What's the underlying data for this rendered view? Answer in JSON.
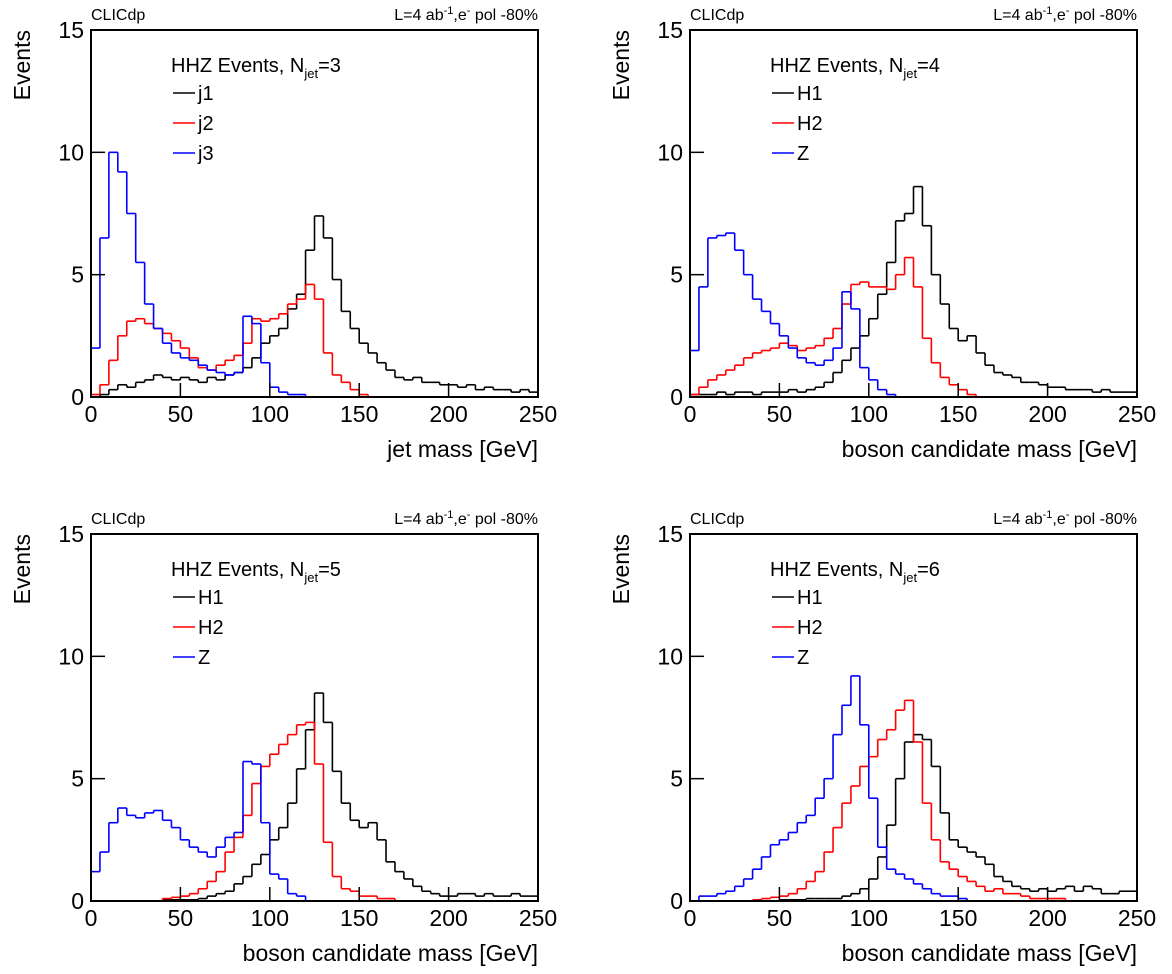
{
  "chart_data": [
    {
      "type": "histogram",
      "experiment": "CLICdp",
      "lumi_label": [
        "L=4 ab",
        "-1",
        ",e",
        "-",
        " pol -80%"
      ],
      "legend_title": [
        "HHZ Events, N",
        "jet",
        "=3"
      ],
      "xlabel": "jet mass [GeV]",
      "ylabel": "Events",
      "bins": [
        0,
        5,
        10,
        15,
        20,
        25,
        30,
        35,
        40,
        45,
        50,
        55,
        60,
        65,
        70,
        75,
        80,
        85,
        90,
        95,
        100,
        105,
        110,
        115,
        120,
        125,
        130,
        135,
        140,
        145,
        150,
        155,
        160,
        165,
        170,
        175,
        180,
        185,
        190,
        195,
        200,
        205,
        210,
        215,
        220,
        225,
        230,
        235,
        240,
        245,
        250
      ],
      "xlim": [
        0,
        250
      ],
      "ylim": [
        0,
        15
      ],
      "xticks": [
        0,
        50,
        100,
        150,
        200,
        250
      ],
      "yticks": [
        0,
        5,
        10,
        15
      ],
      "series": [
        {
          "name": "j1",
          "color": "#000000",
          "values": [
            0,
            0.1,
            0.3,
            0.5,
            0.4,
            0.6,
            0.7,
            0.9,
            0.8,
            0.7,
            0.8,
            0.7,
            0.6,
            0.8,
            0.7,
            0.9,
            1.0,
            1.2,
            1.6,
            2.2,
            2.5,
            2.8,
            3.6,
            4.2,
            6.0,
            7.4,
            6.5,
            4.8,
            3.5,
            2.8,
            2.2,
            1.8,
            1.4,
            1.1,
            0.8,
            0.7,
            0.8,
            0.6,
            0.6,
            0.5,
            0.5,
            0.4,
            0.5,
            0.3,
            0.4,
            0.3,
            0.3,
            0.2,
            0.3,
            0.2
          ]
        },
        {
          "name": "j2",
          "color": "#ff0000",
          "values": [
            0.1,
            0.5,
            1.5,
            2.5,
            3.1,
            3.2,
            3.0,
            2.8,
            2.6,
            2.3,
            2.0,
            1.6,
            1.2,
            1.1,
            1.3,
            1.5,
            1.7,
            2.2,
            3.2,
            3.1,
            3.2,
            3.4,
            3.8,
            4.0,
            4.6,
            4.0,
            1.8,
            0.9,
            0.6,
            0.3,
            0.1,
            0,
            0,
            0,
            0,
            0,
            0,
            0,
            0,
            0,
            0,
            0,
            0,
            0,
            0,
            0,
            0,
            0,
            0,
            0
          ]
        },
        {
          "name": "j3",
          "color": "#0000ff",
          "values": [
            2.0,
            6.5,
            10.0,
            9.2,
            7.5,
            5.5,
            3.8,
            2.8,
            2.2,
            1.8,
            1.6,
            1.5,
            1.3,
            1.1,
            1.0,
            0.9,
            1.0,
            3.3,
            3.0,
            1.4,
            0.4,
            0.2,
            0.1,
            0.1,
            0,
            0,
            0,
            0,
            0,
            0,
            0,
            0,
            0,
            0,
            0,
            0,
            0,
            0,
            0,
            0,
            0,
            0,
            0,
            0,
            0,
            0,
            0,
            0,
            0,
            0
          ]
        }
      ]
    },
    {
      "type": "histogram",
      "experiment": "CLICdp",
      "lumi_label": [
        "L=4 ab",
        "-1",
        ",e",
        "-",
        " pol -80%"
      ],
      "legend_title": [
        "HHZ Events, N",
        "jet",
        "=4"
      ],
      "xlabel": "boson candidate mass [GeV]",
      "ylabel": "Events",
      "bins": [
        0,
        5,
        10,
        15,
        20,
        25,
        30,
        35,
        40,
        45,
        50,
        55,
        60,
        65,
        70,
        75,
        80,
        85,
        90,
        95,
        100,
        105,
        110,
        115,
        120,
        125,
        130,
        135,
        140,
        145,
        150,
        155,
        160,
        165,
        170,
        175,
        180,
        185,
        190,
        195,
        200,
        205,
        210,
        215,
        220,
        225,
        230,
        235,
        240,
        245,
        250
      ],
      "xlim": [
        0,
        250
      ],
      "ylim": [
        0,
        15
      ],
      "xticks": [
        0,
        50,
        100,
        150,
        200,
        250
      ],
      "yticks": [
        0,
        5,
        10,
        15
      ],
      "series": [
        {
          "name": "H1",
          "color": "#000000",
          "values": [
            0.1,
            0.1,
            0.1,
            0.2,
            0.1,
            0.2,
            0.2,
            0.1,
            0.2,
            0.2,
            0.2,
            0.3,
            0.2,
            0.3,
            0.4,
            0.6,
            1.0,
            1.5,
            2.0,
            2.5,
            3.2,
            4.2,
            5.5,
            7.2,
            7.5,
            8.6,
            7.0,
            5.0,
            3.8,
            2.8,
            2.3,
            2.5,
            1.8,
            1.3,
            1.0,
            0.9,
            0.8,
            0.6,
            0.6,
            0.5,
            0.4,
            0.4,
            0.3,
            0.3,
            0.3,
            0.2,
            0.3,
            0.2,
            0.2,
            0.2
          ]
        },
        {
          "name": "H2",
          "color": "#ff0000",
          "values": [
            0.1,
            0.4,
            0.7,
            0.9,
            1.1,
            1.3,
            1.6,
            1.8,
            1.9,
            2.0,
            2.2,
            2.1,
            1.9,
            2.0,
            2.1,
            2.4,
            2.8,
            3.8,
            4.6,
            4.7,
            4.5,
            4.5,
            4.4,
            5.0,
            5.7,
            4.5,
            2.4,
            1.4,
            0.8,
            0.5,
            0.3,
            0.1,
            0,
            0,
            0,
            0,
            0,
            0,
            0,
            0,
            0,
            0,
            0,
            0,
            0,
            0,
            0,
            0,
            0,
            0
          ]
        },
        {
          "name": "Z",
          "color": "#0000ff",
          "values": [
            1.9,
            4.5,
            6.5,
            6.6,
            6.7,
            6.0,
            5.0,
            4.0,
            3.5,
            3.0,
            2.5,
            2.0,
            1.6,
            1.4,
            1.3,
            1.5,
            2.0,
            4.3,
            3.6,
            1.2,
            0.7,
            0.3,
            0.1,
            0,
            0,
            0,
            0,
            0,
            0,
            0,
            0,
            0,
            0,
            0,
            0,
            0,
            0,
            0,
            0,
            0,
            0,
            0,
            0,
            0,
            0,
            0,
            0,
            0,
            0,
            0
          ]
        }
      ]
    },
    {
      "type": "histogram",
      "experiment": "CLICdp",
      "lumi_label": [
        "L=4 ab",
        "-1",
        ",e",
        "-",
        " pol -80%"
      ],
      "legend_title": [
        "HHZ Events, N",
        "jet",
        "=5"
      ],
      "xlabel": "boson candidate mass [GeV]",
      "ylabel": "Events",
      "bins": [
        0,
        5,
        10,
        15,
        20,
        25,
        30,
        35,
        40,
        45,
        50,
        55,
        60,
        65,
        70,
        75,
        80,
        85,
        90,
        95,
        100,
        105,
        110,
        115,
        120,
        125,
        130,
        135,
        140,
        145,
        150,
        155,
        160,
        165,
        170,
        175,
        180,
        185,
        190,
        195,
        200,
        205,
        210,
        215,
        220,
        225,
        230,
        235,
        240,
        245,
        250
      ],
      "xlim": [
        0,
        250
      ],
      "ylim": [
        0,
        15
      ],
      "xticks": [
        0,
        50,
        100,
        150,
        200,
        250
      ],
      "yticks": [
        0,
        5,
        10,
        15
      ],
      "series": [
        {
          "name": "H1",
          "color": "#000000",
          "values": [
            0,
            0,
            0,
            0,
            0,
            0,
            0,
            0,
            0.05,
            0.05,
            0.05,
            0.05,
            0.1,
            0.2,
            0.3,
            0.4,
            0.7,
            1.0,
            1.5,
            1.9,
            2.5,
            3.0,
            4.0,
            5.4,
            7.0,
            8.5,
            7.3,
            5.3,
            4.0,
            3.3,
            3.0,
            3.2,
            2.5,
            1.6,
            1.2,
            0.9,
            0.6,
            0.4,
            0.3,
            0.2,
            0.2,
            0.3,
            0.3,
            0.2,
            0.3,
            0.2,
            0.2,
            0.3,
            0.2,
            0.2
          ]
        },
        {
          "name": "H2",
          "color": "#ff0000",
          "values": [
            0,
            0,
            0,
            0,
            0,
            0,
            0,
            0,
            0.1,
            0.15,
            0.2,
            0.3,
            0.5,
            0.8,
            1.2,
            2.0,
            2.6,
            3.5,
            4.8,
            5.5,
            6.0,
            6.4,
            6.8,
            7.2,
            7.3,
            5.6,
            2.4,
            1.0,
            0.5,
            0.4,
            0.2,
            0.2,
            0.1,
            0.1,
            0,
            0,
            0,
            0,
            0,
            0,
            0,
            0,
            0,
            0,
            0,
            0,
            0,
            0,
            0,
            0
          ]
        },
        {
          "name": "Z",
          "color": "#0000ff",
          "values": [
            1.2,
            2.0,
            3.2,
            3.8,
            3.5,
            3.4,
            3.6,
            3.7,
            3.3,
            3.0,
            2.5,
            2.2,
            2.0,
            1.8,
            2.2,
            2.6,
            2.8,
            5.7,
            5.6,
            3.2,
            1.1,
            0.9,
            0.3,
            0.2,
            0,
            0,
            0,
            0,
            0,
            0,
            0,
            0,
            0,
            0,
            0,
            0,
            0,
            0,
            0,
            0,
            0,
            0,
            0,
            0,
            0,
            0,
            0,
            0,
            0,
            0
          ]
        }
      ]
    },
    {
      "type": "histogram",
      "experiment": "CLICdp",
      "lumi_label": [
        "L=4 ab",
        "-1",
        ",e",
        "-",
        " pol -80%"
      ],
      "legend_title": [
        "HHZ Events, N",
        "jet",
        "=6"
      ],
      "xlabel": "boson candidate mass [GeV]",
      "ylabel": "Events",
      "bins": [
        0,
        5,
        10,
        15,
        20,
        25,
        30,
        35,
        40,
        45,
        50,
        55,
        60,
        65,
        70,
        75,
        80,
        85,
        90,
        95,
        100,
        105,
        110,
        115,
        120,
        125,
        130,
        135,
        140,
        145,
        150,
        155,
        160,
        165,
        170,
        175,
        180,
        185,
        190,
        195,
        200,
        205,
        210,
        215,
        220,
        225,
        230,
        235,
        240,
        245,
        250
      ],
      "xlim": [
        0,
        250
      ],
      "ylim": [
        0,
        15
      ],
      "xticks": [
        0,
        50,
        100,
        150,
        200,
        250
      ],
      "yticks": [
        0,
        5,
        10,
        15
      ],
      "series": [
        {
          "name": "H1",
          "color": "#000000",
          "values": [
            0,
            0,
            0,
            0,
            0,
            0,
            0,
            0,
            0,
            0,
            0.05,
            0.05,
            0.05,
            0.1,
            0.1,
            0.1,
            0.1,
            0.2,
            0.3,
            0.5,
            0.9,
            1.8,
            3.1,
            5.0,
            6.5,
            6.8,
            6.6,
            5.5,
            3.6,
            2.5,
            2.2,
            2.0,
            1.8,
            1.5,
            1.0,
            0.8,
            0.6,
            0.5,
            0.4,
            0.5,
            0.4,
            0.5,
            0.6,
            0.4,
            0.6,
            0.5,
            0.3,
            0.3,
            0.4,
            0.4
          ]
        },
        {
          "name": "H2",
          "color": "#ff0000",
          "values": [
            0,
            0,
            0,
            0,
            0,
            0,
            0,
            0.05,
            0.1,
            0.15,
            0.2,
            0.3,
            0.5,
            0.8,
            1.2,
            2.0,
            3.0,
            4.0,
            4.7,
            5.5,
            5.9,
            6.6,
            7.0,
            7.8,
            8.2,
            6.5,
            4.0,
            2.5,
            1.6,
            1.3,
            1.0,
            0.8,
            0.6,
            0.4,
            0.5,
            0.3,
            0.3,
            0.2,
            0.1,
            0.1,
            0.1,
            0.1,
            0,
            0,
            0,
            0,
            0,
            0,
            0,
            0
          ]
        },
        {
          "name": "Z",
          "color": "#0000ff",
          "values": [
            0,
            0.2,
            0.2,
            0.3,
            0.4,
            0.6,
            0.9,
            1.3,
            1.8,
            2.3,
            2.5,
            2.8,
            3.2,
            3.5,
            4.2,
            5.0,
            6.8,
            8.0,
            9.2,
            7.2,
            4.2,
            2.2,
            1.3,
            1.1,
            0.9,
            0.7,
            0.5,
            0.3,
            0.2,
            0.2,
            0.1,
            0,
            0,
            0,
            0,
            0,
            0,
            0,
            0,
            0,
            0,
            0,
            0,
            0,
            0,
            0,
            0,
            0,
            0,
            0
          ]
        }
      ]
    }
  ]
}
